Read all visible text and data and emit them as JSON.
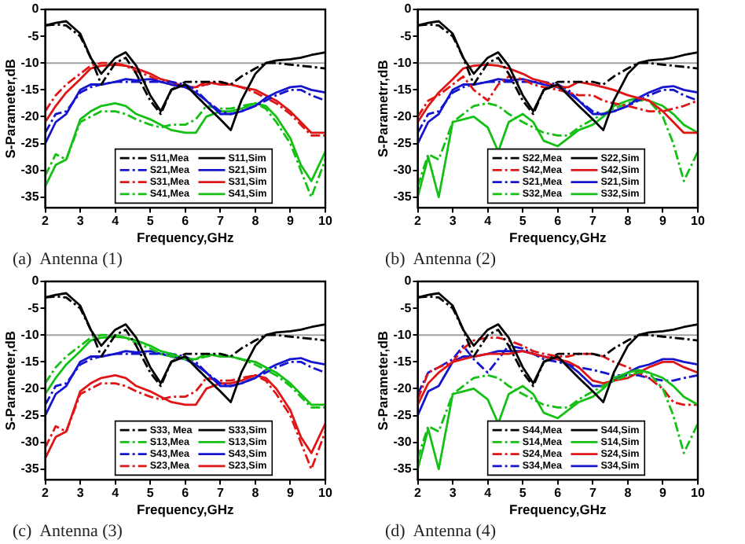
{
  "chart_data": [
    {
      "type": "line",
      "xlabel": "Frequency,GHz",
      "ylabel": "S-Parameter,dB",
      "annotations": [
        "(a)  Antenna (1)"
      ],
      "xlim": [
        2,
        10
      ],
      "xticks": [
        2,
        3,
        4,
        5,
        6,
        7,
        8,
        9,
        10
      ],
      "ylim": [
        -37,
        0
      ],
      "yticks": [
        0,
        -5,
        -10,
        -15,
        -20,
        -25,
        -30,
        -35
      ],
      "grid": false,
      "legend": "bottom right",
      "ref_lines": [
        {
          "axis": "y",
          "value": -10,
          "color": "#a0a0a0"
        }
      ],
      "x": [
        2,
        2.3,
        2.6,
        3,
        3.3,
        3.6,
        4,
        4.3,
        4.6,
        5,
        5.3,
        5.6,
        6,
        6.3,
        6.6,
        7,
        7.3,
        7.6,
        8,
        8.3,
        8.6,
        9,
        9.3,
        9.6,
        10
      ],
      "series": [
        {
          "name": "S11,Mea",
          "color": "#000000",
          "line_style": "dashed",
          "values": [
            -3,
            -2.8,
            -3,
            -5,
            -9,
            -14,
            -10,
            -9,
            -12,
            -17,
            -19.5,
            -15,
            -13.5,
            -13.5,
            -13.5,
            -13.5,
            -14,
            -12.5,
            -11,
            -10,
            -10,
            -10.3,
            -10.5,
            -10.7,
            -11
          ]
        },
        {
          "name": "S11,Sim",
          "color": "#000000",
          "line_style": "solid",
          "values": [
            -3,
            -2.5,
            -2.2,
            -4.5,
            -9,
            -12,
            -9,
            -8,
            -10.5,
            -16,
            -19,
            -15,
            -14,
            -16,
            -18,
            -20.5,
            -22.5,
            -17,
            -12,
            -10,
            -9.5,
            -9.3,
            -9,
            -8.5,
            -8
          ]
        },
        {
          "name": "S21,Mea",
          "color": "#1515d0",
          "line_style": "dashed",
          "values": [
            -23,
            -19.5,
            -19,
            -15.5,
            -14.5,
            -14,
            -13.5,
            -13.5,
            -13.5,
            -13.5,
            -13.5,
            -13.5,
            -14,
            -15,
            -17,
            -19,
            -19.5,
            -19,
            -18,
            -17,
            -16,
            -15,
            -15,
            -16,
            -17
          ]
        },
        {
          "name": "S21,Sim",
          "color": "#1515d0",
          "line_style": "solid",
          "values": [
            -25,
            -21,
            -19.5,
            -15,
            -14,
            -14,
            -13.5,
            -13,
            -13.2,
            -13,
            -13.5,
            -14,
            -14.5,
            -15.5,
            -17,
            -19.5,
            -19.5,
            -19,
            -18,
            -16.5,
            -15.5,
            -14.5,
            -14.3,
            -15,
            -15.5
          ]
        },
        {
          "name": "S31,Mea",
          "color": "#e01515",
          "line_style": "dashed",
          "values": [
            -19,
            -16,
            -14,
            -12,
            -10.5,
            -10,
            -10,
            -10.5,
            -11.5,
            -12.5,
            -13.5,
            -14,
            -14.5,
            -14.5,
            -14,
            -13.5,
            -14,
            -14.5,
            -15.5,
            -16.5,
            -17.5,
            -19.5,
            -21.5,
            -23.5,
            -23.5
          ]
        },
        {
          "name": "S31,Sim",
          "color": "#e01515",
          "line_style": "solid",
          "values": [
            -21,
            -18,
            -15.5,
            -13,
            -11,
            -10.5,
            -10.3,
            -10.5,
            -11,
            -12,
            -13,
            -13.5,
            -14.5,
            -14.5,
            -13.5,
            -14,
            -14,
            -14.5,
            -15,
            -16,
            -17,
            -19,
            -21,
            -23,
            -23
          ]
        },
        {
          "name": "S41,Mea",
          "color": "#15c015",
          "line_style": "dashed",
          "values": [
            -31,
            -27,
            -28,
            -21,
            -20,
            -19,
            -19,
            -19.5,
            -20.5,
            -21.5,
            -22,
            -21.5,
            -21.5,
            -20.5,
            -18,
            -18.5,
            -18.5,
            -18,
            -17.5,
            -18.5,
            -21,
            -25,
            -30,
            -35,
            -28
          ]
        },
        {
          "name": "S41,Sim",
          "color": "#15c015",
          "line_style": "solid",
          "values": [
            -33,
            -29,
            -28,
            -20.5,
            -19,
            -18,
            -17.5,
            -18,
            -19.5,
            -20.5,
            -21.5,
            -22.5,
            -23,
            -23,
            -20,
            -19,
            -19,
            -18.5,
            -17.5,
            -18,
            -20,
            -24,
            -29,
            -32,
            -26.5
          ]
        }
      ]
    },
    {
      "type": "line",
      "xlabel": "Frequency,GHz",
      "ylabel": "S-Parametrr,dB",
      "annotations": [
        "(b)  Antenna (2)"
      ],
      "xlim": [
        2,
        10
      ],
      "xticks": [
        2,
        3,
        4,
        5,
        6,
        7,
        8,
        9,
        10
      ],
      "ylim": [
        -37,
        0
      ],
      "yticks": [
        0,
        -5,
        -10,
        -15,
        -20,
        -25,
        -30,
        -35
      ],
      "grid": false,
      "legend": "bottom right",
      "ref_lines": [
        {
          "axis": "y",
          "value": -10,
          "color": "#a0a0a0"
        }
      ],
      "x": [
        2,
        2.3,
        2.6,
        3,
        3.3,
        3.6,
        4,
        4.3,
        4.6,
        5,
        5.3,
        5.6,
        6,
        6.3,
        6.6,
        7,
        7.3,
        7.6,
        8,
        8.3,
        8.6,
        9,
        9.3,
        9.6,
        10
      ],
      "series": [
        {
          "name": "S22,Mea",
          "color": "#000000",
          "line_style": "dashed",
          "values": [
            -3,
            -2.8,
            -3,
            -5,
            -9,
            -14,
            -10,
            -9,
            -12,
            -17,
            -19.5,
            -15,
            -13.5,
            -13.5,
            -13.5,
            -13.5,
            -14,
            -12.5,
            -11,
            -10,
            -10,
            -10.3,
            -10.5,
            -10.7,
            -11
          ]
        },
        {
          "name": "S22,Sim",
          "color": "#000000",
          "line_style": "solid",
          "values": [
            -3,
            -2.5,
            -2.2,
            -4.5,
            -9,
            -12,
            -9,
            -8,
            -10.5,
            -16,
            -19,
            -15,
            -14,
            -16,
            -18,
            -20.5,
            -22.5,
            -17,
            -12,
            -10,
            -9.5,
            -9.3,
            -9,
            -8.5,
            -8
          ]
        },
        {
          "name": "S42,Mea",
          "color": "#e01515",
          "line_style": "dashed",
          "values": [
            -20,
            -17,
            -16,
            -14,
            -12.5,
            -15,
            -17,
            -14,
            -12.5,
            -13,
            -14,
            -14.5,
            -15,
            -15.5,
            -16,
            -16,
            -17,
            -17.5,
            -18,
            -18.5,
            -19,
            -19,
            -18.5,
            -18,
            -17
          ]
        },
        {
          "name": "S42,Sim",
          "color": "#e01515",
          "line_style": "solid",
          "values": [
            -21,
            -18,
            -15.5,
            -13,
            -11,
            -10.5,
            -10.3,
            -10.5,
            -11,
            -12,
            -13,
            -13.5,
            -14.5,
            -14.5,
            -13.5,
            -14,
            -14.5,
            -15,
            -16,
            -16.5,
            -17,
            -19,
            -21,
            -23,
            -23
          ]
        },
        {
          "name": "S21,Mea",
          "color": "#1515d0",
          "line_style": "dashed",
          "values": [
            -23,
            -19.5,
            -19,
            -15.5,
            -14.5,
            -14,
            -13.5,
            -13.5,
            -13.5,
            -13.5,
            -13.5,
            -13.5,
            -14,
            -15,
            -17,
            -19,
            -19.5,
            -19,
            -18,
            -17,
            -16,
            -15,
            -15,
            -16,
            -17
          ]
        },
        {
          "name": "S21,Sim",
          "color": "#1515d0",
          "line_style": "solid",
          "values": [
            -25,
            -21,
            -19.5,
            -15,
            -14,
            -14,
            -13.5,
            -13,
            -13.2,
            -13,
            -13.5,
            -14,
            -14.5,
            -15.5,
            -17,
            -19.5,
            -19.5,
            -19,
            -18,
            -16.5,
            -15.5,
            -14.5,
            -14.3,
            -15,
            -15.5
          ]
        },
        {
          "name": "S32,Mea",
          "color": "#15c015",
          "line_style": "dashed",
          "values": [
            -33,
            -27,
            -28,
            -21,
            -19.5,
            -18,
            -17.5,
            -18,
            -19.5,
            -21,
            -22,
            -23,
            -23.5,
            -23.5,
            -22,
            -20.5,
            -19.5,
            -18.5,
            -17.5,
            -17,
            -17,
            -20,
            -25,
            -32,
            -26.5
          ]
        },
        {
          "name": "S32,Sim",
          "color": "#15c015",
          "line_style": "solid",
          "values": [
            -35,
            -27.5,
            -35,
            -21,
            -20.5,
            -20,
            -22,
            -26.5,
            -21,
            -19.5,
            -21,
            -24.5,
            -25.5,
            -24,
            -22.5,
            -21.5,
            -20,
            -18,
            -17,
            -16.5,
            -17,
            -18,
            -19.5,
            -21.5,
            -23
          ]
        }
      ]
    },
    {
      "type": "line",
      "xlabel": "Frequency,GHz",
      "ylabel": "S-Parameter,dB",
      "annotations": [
        "(c)  Antenna (3)"
      ],
      "xlim": [
        2,
        10
      ],
      "xticks": [
        2,
        3,
        4,
        5,
        6,
        7,
        8,
        9,
        10
      ],
      "ylim": [
        -37,
        0
      ],
      "yticks": [
        0,
        -5,
        -10,
        -15,
        -20,
        -25,
        -30,
        -35
      ],
      "grid": false,
      "legend": "bottom right",
      "ref_lines": [
        {
          "axis": "y",
          "value": -10,
          "color": "#a0a0a0"
        }
      ],
      "x": [
        2,
        2.3,
        2.6,
        3,
        3.3,
        3.6,
        4,
        4.3,
        4.6,
        5,
        5.3,
        5.6,
        6,
        6.3,
        6.6,
        7,
        7.3,
        7.6,
        8,
        8.3,
        8.6,
        9,
        9.3,
        9.6,
        10
      ],
      "series": [
        {
          "name": "S33, Mea",
          "color": "#000000",
          "line_style": "dashed",
          "values": [
            -3,
            -2.8,
            -3,
            -5,
            -9,
            -14,
            -10,
            -9,
            -12,
            -17,
            -19.5,
            -15,
            -13.5,
            -13.5,
            -13.5,
            -13.5,
            -14,
            -12.5,
            -11,
            -10,
            -10,
            -10.3,
            -10.5,
            -10.7,
            -11
          ]
        },
        {
          "name": "S33,Sim",
          "color": "#000000",
          "line_style": "solid",
          "values": [
            -3,
            -2.5,
            -2.2,
            -4.5,
            -9,
            -12,
            -9,
            -8,
            -10.5,
            -16,
            -19,
            -15,
            -14,
            -16,
            -18,
            -20.5,
            -22.5,
            -17,
            -12,
            -10,
            -9.5,
            -9.3,
            -9,
            -8.5,
            -8
          ]
        },
        {
          "name": "S13,Mea",
          "color": "#15c015",
          "line_style": "dashed",
          "values": [
            -19,
            -16,
            -14,
            -12,
            -10.5,
            -10,
            -10,
            -10.5,
            -11.5,
            -12.5,
            -13.5,
            -14,
            -14.5,
            -14.5,
            -14,
            -13.5,
            -14,
            -14.5,
            -15.5,
            -16.5,
            -17.5,
            -19.5,
            -21.5,
            -23.5,
            -23.5
          ]
        },
        {
          "name": "S13,Sim",
          "color": "#15c015",
          "line_style": "solid",
          "values": [
            -21,
            -18,
            -15.5,
            -13,
            -11,
            -10.5,
            -10.3,
            -10.5,
            -11,
            -12,
            -13,
            -13.5,
            -14.5,
            -14.5,
            -13.5,
            -14,
            -14,
            -14.5,
            -15,
            -16,
            -17,
            -19,
            -21,
            -23,
            -23
          ]
        },
        {
          "name": "S43,Mea",
          "color": "#1515d0",
          "line_style": "dashed",
          "values": [
            -23,
            -19.5,
            -19,
            -15.5,
            -14.5,
            -14,
            -13.5,
            -13.5,
            -13.5,
            -13.5,
            -13.5,
            -13.5,
            -14,
            -15,
            -17,
            -19,
            -19.5,
            -19,
            -18,
            -17,
            -16,
            -15,
            -15,
            -16,
            -17
          ]
        },
        {
          "name": "S43,Sim",
          "color": "#1515d0",
          "line_style": "solid",
          "values": [
            -25,
            -21,
            -19.5,
            -15,
            -14,
            -14,
            -13.5,
            -13,
            -13.2,
            -13,
            -13.5,
            -14,
            -14.5,
            -15.5,
            -17,
            -19.5,
            -19.5,
            -19,
            -18,
            -16.5,
            -15.5,
            -14.5,
            -14.3,
            -15,
            -15.5
          ]
        },
        {
          "name": "S23,Mea",
          "color": "#e01515",
          "line_style": "dashed",
          "values": [
            -31,
            -27,
            -28,
            -21,
            -20,
            -19,
            -19,
            -19.5,
            -20.5,
            -21.5,
            -22,
            -21.5,
            -21.5,
            -20.5,
            -18,
            -18.5,
            -18.5,
            -18,
            -17.5,
            -18.5,
            -21,
            -25,
            -30,
            -35,
            -28
          ]
        },
        {
          "name": "S23,Sim",
          "color": "#e01515",
          "line_style": "solid",
          "values": [
            -33,
            -29,
            -28,
            -20.5,
            -19,
            -18,
            -17.5,
            -18,
            -19.5,
            -20.5,
            -21.5,
            -22.5,
            -23,
            -23,
            -20,
            -19,
            -19,
            -18.5,
            -17.5,
            -18,
            -20,
            -24,
            -29,
            -32,
            -26.5
          ]
        }
      ]
    },
    {
      "type": "line",
      "xlabel": "Frequency,GHz",
      "ylabel": "S-Parameter,dB",
      "annotations": [
        "(d)  Antenna (4)"
      ],
      "xlim": [
        2,
        10
      ],
      "xticks": [
        2,
        3,
        4,
        5,
        6,
        7,
        8,
        9,
        10
      ],
      "ylim": [
        -37,
        0
      ],
      "yticks": [
        0,
        -5,
        -10,
        -15,
        -20,
        -25,
        -30,
        -35
      ],
      "grid": false,
      "legend": "bottom right",
      "ref_lines": [
        {
          "axis": "y",
          "value": -10,
          "color": "#a0a0a0"
        }
      ],
      "x": [
        2,
        2.3,
        2.6,
        3,
        3.3,
        3.6,
        4,
        4.3,
        4.6,
        5,
        5.3,
        5.6,
        6,
        6.3,
        6.6,
        7,
        7.3,
        7.6,
        8,
        8.3,
        8.6,
        9,
        9.3,
        9.6,
        10
      ],
      "series": [
        {
          "name": "S44,Mea",
          "color": "#000000",
          "line_style": "dashed",
          "values": [
            -3,
            -2.8,
            -3,
            -5,
            -9,
            -14,
            -10,
            -9,
            -12,
            -17,
            -19.5,
            -15,
            -13.5,
            -13.5,
            -13.5,
            -13.5,
            -14,
            -12.5,
            -11,
            -10,
            -10,
            -10.3,
            -10.5,
            -10.7,
            -11
          ]
        },
        {
          "name": "S44,Sim",
          "color": "#000000",
          "line_style": "solid",
          "values": [
            -3,
            -2.5,
            -2.2,
            -4.5,
            -9,
            -12,
            -9,
            -8,
            -10.5,
            -16,
            -19,
            -15,
            -14,
            -16,
            -18,
            -20.5,
            -22.5,
            -17,
            -12,
            -10,
            -9.5,
            -9.3,
            -9,
            -8.5,
            -8
          ]
        },
        {
          "name": "S14,Mea",
          "color": "#15c015",
          "line_style": "dashed",
          "values": [
            -33,
            -27,
            -28,
            -21,
            -19.5,
            -18,
            -17.5,
            -18,
            -19.5,
            -21,
            -22,
            -23,
            -23.5,
            -23.5,
            -22,
            -20.5,
            -19.5,
            -18.5,
            -17.5,
            -17,
            -17,
            -20,
            -25,
            -32,
            -26.5
          ]
        },
        {
          "name": "S14,Sim",
          "color": "#15c015",
          "line_style": "solid",
          "values": [
            -35,
            -27.5,
            -35,
            -21,
            -20.5,
            -20,
            -22,
            -26.5,
            -21,
            -19.5,
            -21,
            -24.5,
            -25.5,
            -24,
            -22.5,
            -21.5,
            -20,
            -18,
            -17,
            -16.5,
            -17,
            -18,
            -19.5,
            -21.5,
            -23
          ]
        },
        {
          "name": "S24,Mea",
          "color": "#e01515",
          "line_style": "dashed",
          "values": [
            -22,
            -17,
            -16,
            -15,
            -12.5,
            -11,
            -10.5,
            -10.5,
            -11,
            -12,
            -13,
            -13.5,
            -14,
            -14,
            -13.5,
            -13.5,
            -14,
            -15,
            -16,
            -17,
            -18,
            -20,
            -22.5,
            -23,
            -23
          ]
        },
        {
          "name": "S24,Sim",
          "color": "#e01515",
          "line_style": "solid",
          "values": [
            -23,
            -19,
            -17,
            -15,
            -14.5,
            -14,
            -13.5,
            -13.5,
            -13.5,
            -13,
            -13.5,
            -14,
            -14.5,
            -15,
            -16,
            -18.5,
            -19,
            -18.5,
            -18,
            -17,
            -16,
            -15,
            -15,
            -16,
            -17
          ]
        },
        {
          "name": "S34,Mea",
          "color": "#1515d0",
          "line_style": "dashed",
          "values": [
            -21,
            -17,
            -16,
            -14.5,
            -12,
            -14.5,
            -17,
            -14.5,
            -12,
            -12.5,
            -13.5,
            -14.5,
            -15,
            -15.5,
            -16,
            -16.5,
            -17,
            -17.5,
            -17.5,
            -17.5,
            -18,
            -18.5,
            -18.5,
            -18,
            -17.5
          ]
        },
        {
          "name": "S34,Sim",
          "color": "#1515d0",
          "line_style": "solid",
          "values": [
            -25,
            -20.5,
            -19.5,
            -15,
            -14,
            -14,
            -13.5,
            -13,
            -13,
            -13,
            -13.5,
            -14,
            -14.5,
            -15.5,
            -17,
            -19.5,
            -19.5,
            -18.5,
            -17,
            -16,
            -15.5,
            -14.5,
            -14.5,
            -15,
            -15.5
          ]
        }
      ]
    }
  ]
}
